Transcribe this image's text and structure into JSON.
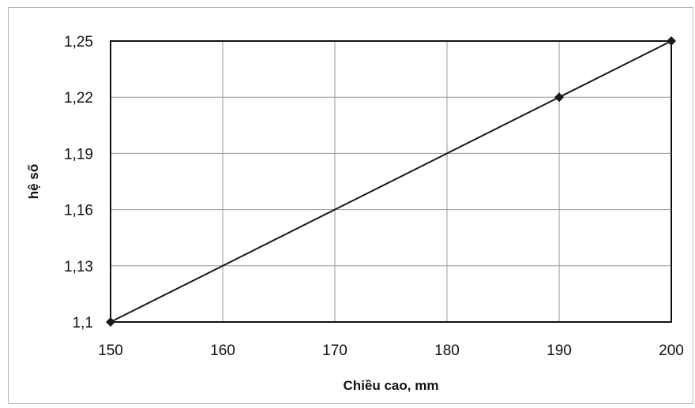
{
  "chart_data": {
    "type": "line",
    "title": "",
    "xlabel": "Chiều cao, mm",
    "ylabel": "hệ số",
    "x_ticks": [
      "150",
      "160",
      "170",
      "180",
      "190",
      "200"
    ],
    "y_ticks": [
      "1,1",
      "1,13",
      "1,16",
      "1,19",
      "1,22",
      "1,25"
    ],
    "xlim": [
      150,
      200
    ],
    "ylim": [
      1.1,
      1.25
    ],
    "grid": true,
    "legend": "none",
    "series": [
      {
        "x": [
          150,
          190,
          200
        ],
        "y": [
          1.1,
          1.22,
          1.25
        ],
        "line_color": "#1a1a1a",
        "marker": "diamond"
      }
    ]
  }
}
